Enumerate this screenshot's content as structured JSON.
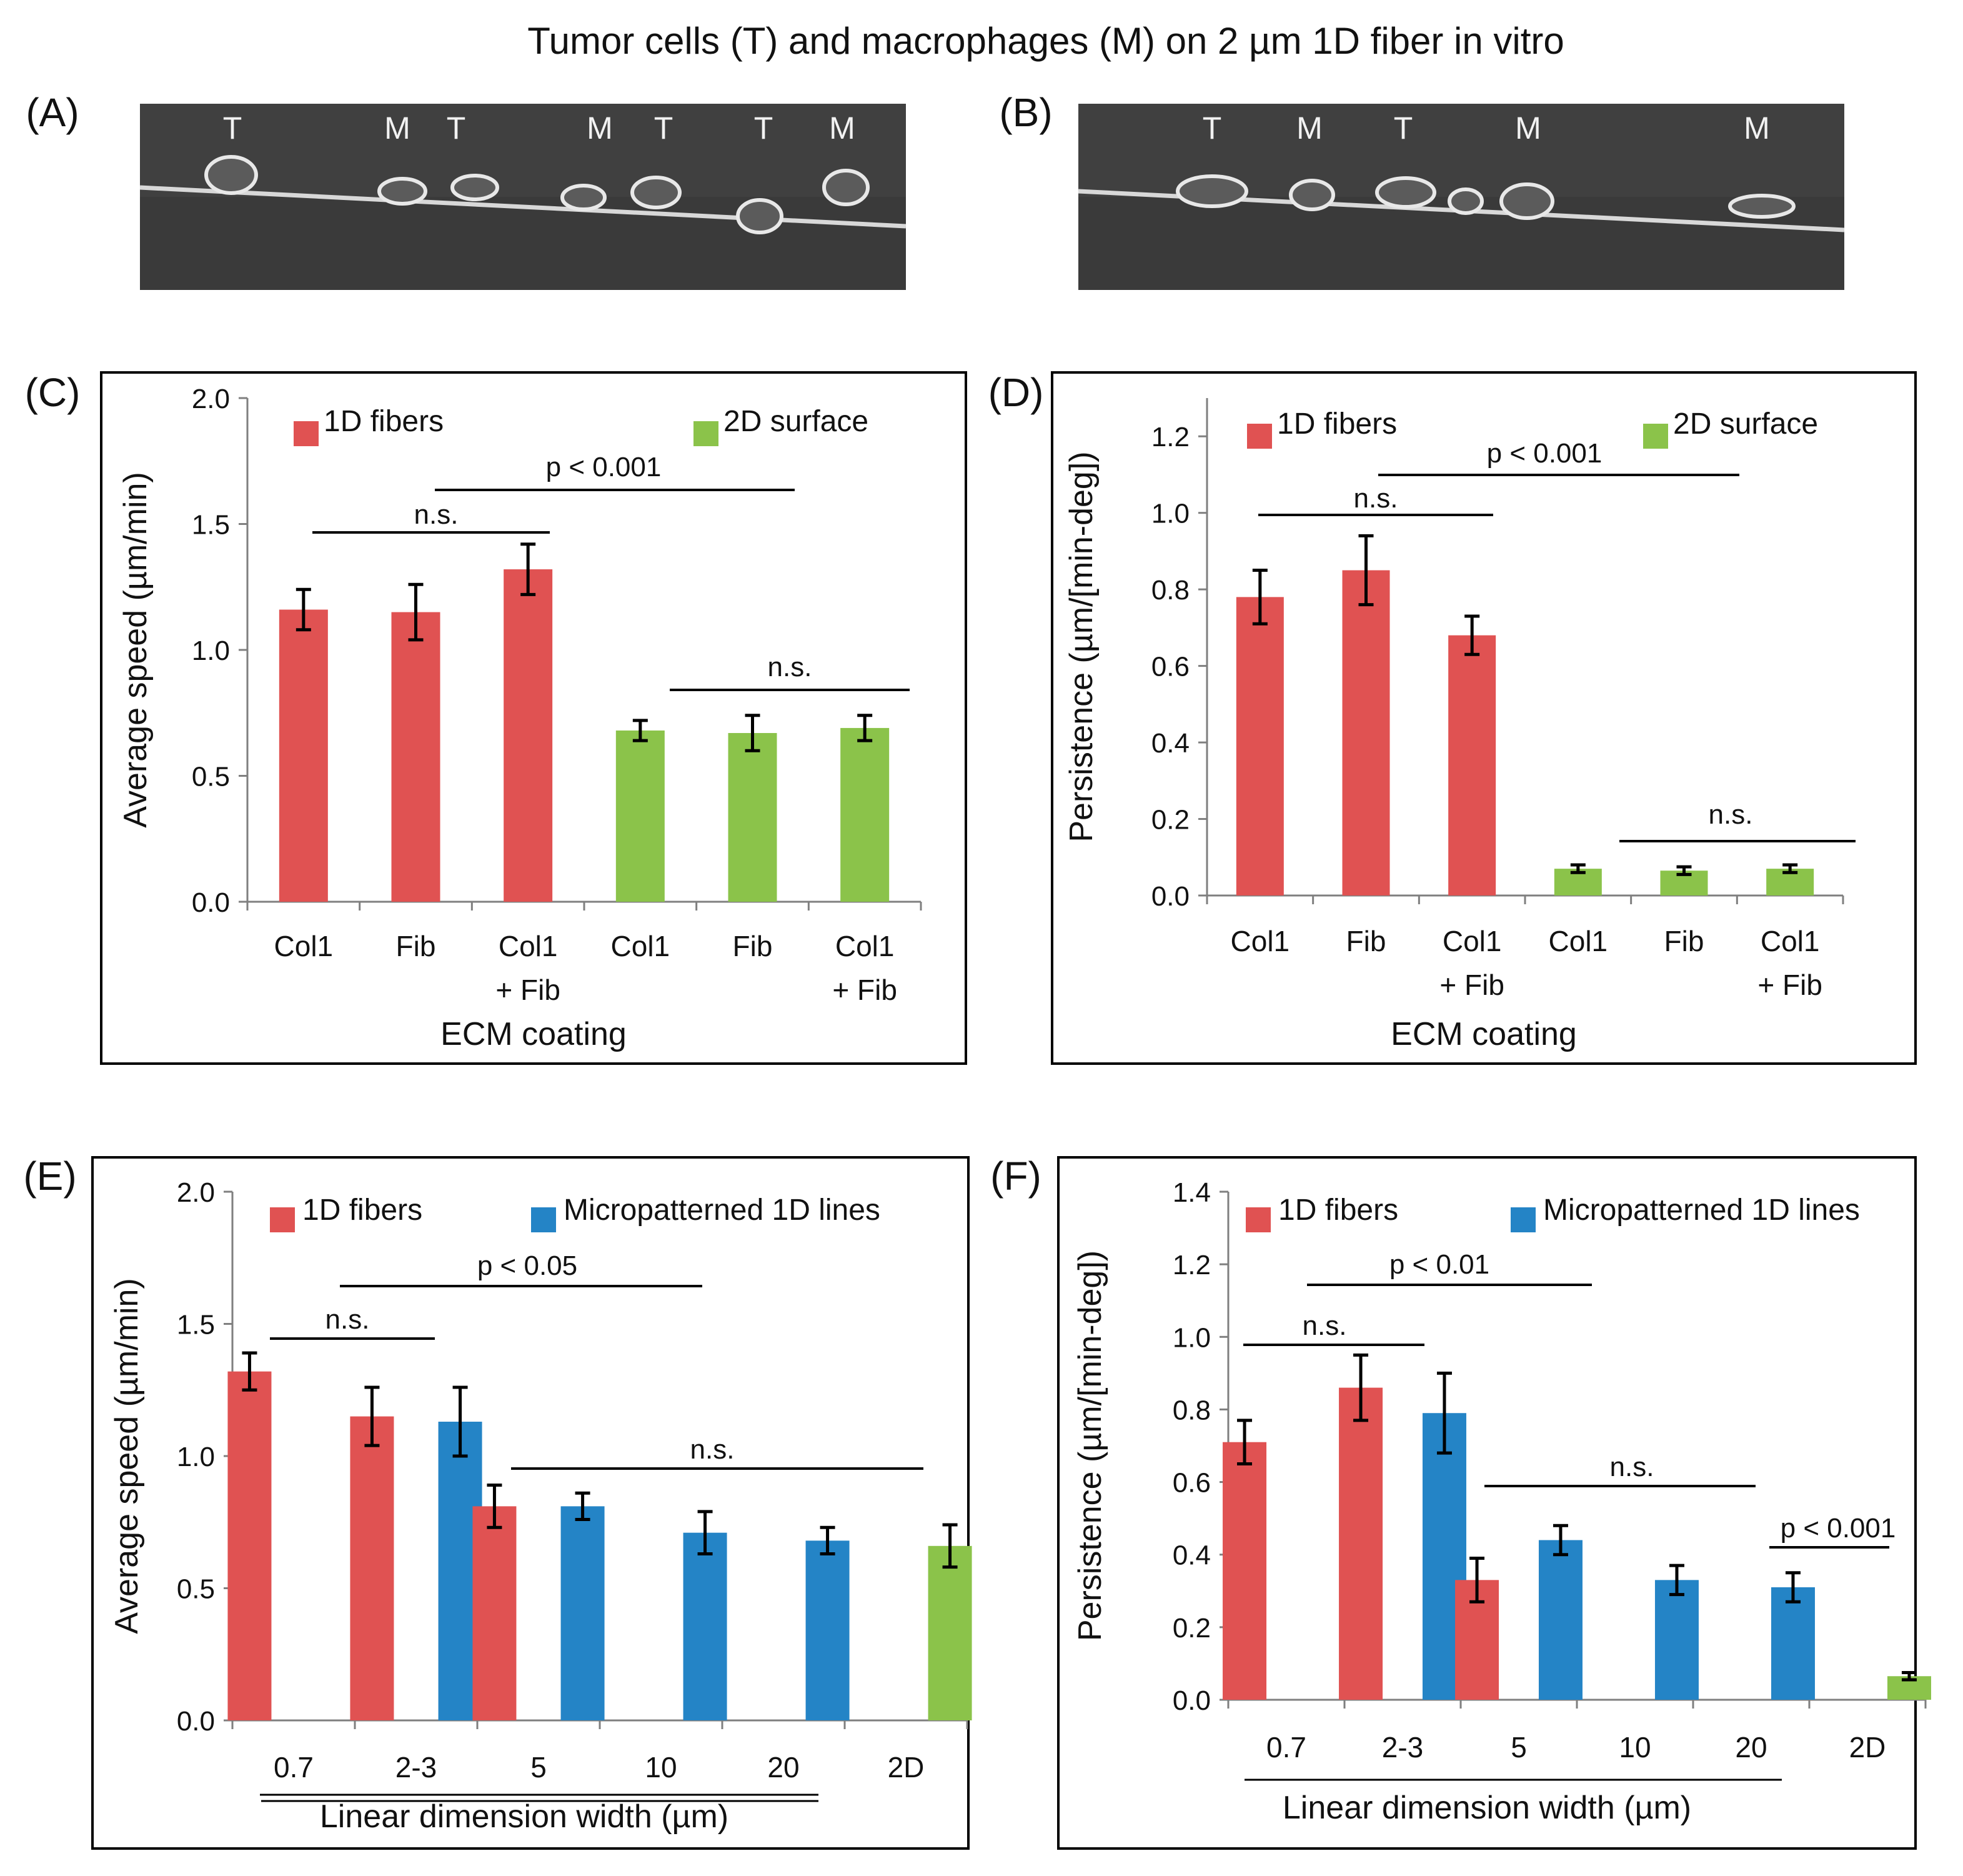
{
  "figure_title": "Tumor cells (T) and macrophages (M) on 2 µm 1D fiber in vitro",
  "colors": {
    "fiber": "#E05252",
    "surface2d": "#8BC34A",
    "lines": "#2484C6",
    "axis": "#7f7f7f"
  },
  "micrographs": [
    {
      "panel": "(A)",
      "labels": [
        "T",
        "M",
        "T",
        "M",
        "T",
        "T",
        "M"
      ]
    },
    {
      "panel": "(B)",
      "labels": [
        "T",
        "M",
        "T",
        "M",
        "M"
      ]
    }
  ],
  "chart_data": [
    {
      "panel": "(C)",
      "type": "bar",
      "ylabel": "Average speed (µm/min)",
      "xlabel": "ECM coating",
      "ylim": [
        0,
        2.0
      ],
      "yticks": [
        "0.0",
        "0.5",
        "1.0",
        "1.5",
        "2.0"
      ],
      "categories": [
        "Col1",
        "Fib",
        "Col1\n+ Fib",
        "Col1",
        "Fib",
        "Col1\n+ Fib"
      ],
      "legend": [
        "1D fibers",
        "2D surface"
      ],
      "bars": [
        {
          "series": "1D fibers",
          "value": 1.16,
          "err": 0.08
        },
        {
          "series": "1D fibers",
          "value": 1.15,
          "err": 0.11
        },
        {
          "series": "1D fibers",
          "value": 1.32,
          "err": 0.1
        },
        {
          "series": "2D surface",
          "value": 0.68,
          "err": 0.04
        },
        {
          "series": "2D surface",
          "value": 0.67,
          "err": 0.07
        },
        {
          "series": "2D surface",
          "value": 0.69,
          "err": 0.05
        }
      ],
      "annotations": [
        "n.s.",
        "p < 0.001",
        "n.s."
      ]
    },
    {
      "panel": "(D)",
      "type": "bar",
      "ylabel": "Persistence (µm/[min-deg])",
      "xlabel": "ECM coating",
      "ylim": [
        0,
        1.3
      ],
      "yticks": [
        "0.0",
        "0.2",
        "0.4",
        "0.6",
        "0.8",
        "1.0",
        "1.2"
      ],
      "categories": [
        "Col1",
        "Fib",
        "Col1\n+ Fib",
        "Col1",
        "Fib",
        "Col1\n+ Fib"
      ],
      "legend": [
        "1D fibers",
        "2D surface"
      ],
      "bars": [
        {
          "series": "1D fibers",
          "value": 0.78,
          "err": 0.07
        },
        {
          "series": "1D fibers",
          "value": 0.85,
          "err": 0.09
        },
        {
          "series": "1D fibers",
          "value": 0.68,
          "err": 0.05
        },
        {
          "series": "2D surface",
          "value": 0.07,
          "err": 0.01
        },
        {
          "series": "2D surface",
          "value": 0.065,
          "err": 0.01
        },
        {
          "series": "2D surface",
          "value": 0.07,
          "err": 0.01
        }
      ],
      "annotations": [
        "n.s.",
        "p < 0.001",
        "n.s."
      ]
    },
    {
      "panel": "(E)",
      "type": "bar",
      "ylabel": "Average speed (µm/min)",
      "xlabel": "Linear dimension width (µm)",
      "ylim": [
        0,
        2.0
      ],
      "yticks": [
        "0.0",
        "0.5",
        "1.0",
        "1.5",
        "2.0"
      ],
      "categories": [
        "0.7",
        "2-3",
        "5",
        "10",
        "20",
        "2D"
      ],
      "legend": [
        "1D fibers",
        "Micropatterned 1D lines"
      ],
      "bars": [
        {
          "category": "0.7",
          "series": "1D fibers",
          "value": 1.32,
          "err": 0.07
        },
        {
          "category": "2-3",
          "series": "1D fibers",
          "value": 1.15,
          "err": 0.11
        },
        {
          "category": "2-3",
          "series": "Micropatterned 1D lines",
          "value": 1.13,
          "err": 0.13
        },
        {
          "category": "5",
          "series": "1D fibers",
          "value": 0.81,
          "err": 0.08
        },
        {
          "category": "5",
          "series": "Micropatterned 1D lines",
          "value": 0.81,
          "err": 0.05
        },
        {
          "category": "10",
          "series": "Micropatterned 1D lines",
          "value": 0.71,
          "err": 0.08
        },
        {
          "category": "20",
          "series": "Micropatterned 1D lines",
          "value": 0.68,
          "err": 0.05
        },
        {
          "category": "2D",
          "series": "2D surface",
          "value": 0.66,
          "err": 0.08
        }
      ],
      "annotations": [
        "n.s.",
        "p < 0.05",
        "n.s."
      ]
    },
    {
      "panel": "(F)",
      "type": "bar",
      "ylabel": "Persistence (µm/[min-deg])",
      "xlabel": "Linear dimension width (µm)",
      "ylim": [
        0,
        1.4
      ],
      "yticks": [
        "0.0",
        "0.2",
        "0.4",
        "0.6",
        "0.8",
        "1.0",
        "1.2",
        "1.4"
      ],
      "categories": [
        "0.7",
        "2-3",
        "5",
        "10",
        "20",
        "2D"
      ],
      "legend": [
        "1D fibers",
        "Micropatterned 1D lines"
      ],
      "bars": [
        {
          "category": "0.7",
          "series": "1D fibers",
          "value": 0.71,
          "err": 0.06
        },
        {
          "category": "2-3",
          "series": "1D fibers",
          "value": 0.86,
          "err": 0.09
        },
        {
          "category": "2-3",
          "series": "Micropatterned 1D lines",
          "value": 0.79,
          "err": 0.11
        },
        {
          "category": "5",
          "series": "1D fibers",
          "value": 0.33,
          "err": 0.06
        },
        {
          "category": "5",
          "series": "Micropatterned 1D lines",
          "value": 0.44,
          "err": 0.04
        },
        {
          "category": "10",
          "series": "Micropatterned 1D lines",
          "value": 0.33,
          "err": 0.04
        },
        {
          "category": "20",
          "series": "Micropatterned 1D lines",
          "value": 0.31,
          "err": 0.04
        },
        {
          "category": "2D",
          "series": "2D surface",
          "value": 0.065,
          "err": 0.01
        }
      ],
      "annotations": [
        "n.s.",
        "p < 0.01",
        "n.s.",
        "p < 0.001"
      ]
    }
  ]
}
